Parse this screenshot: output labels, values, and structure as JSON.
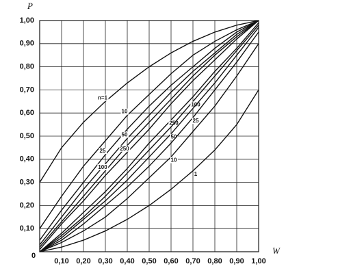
{
  "chart_data": {
    "type": "line",
    "y_label": "P",
    "x_label": "W",
    "origin_label": "0",
    "xlim": [
      0,
      1
    ],
    "ylim": [
      0,
      1
    ],
    "xticks": [
      {
        "value": 0.1,
        "label": "0,10"
      },
      {
        "value": 0.2,
        "label": "0,20"
      },
      {
        "value": 0.3,
        "label": "0,30"
      },
      {
        "value": 0.4,
        "label": "0,40"
      },
      {
        "value": 0.5,
        "label": "0,50"
      },
      {
        "value": 0.6,
        "label": "0,60"
      },
      {
        "value": 0.7,
        "label": "0,70"
      },
      {
        "value": 0.8,
        "label": "0,80"
      },
      {
        "value": 0.9,
        "label": "0,90"
      },
      {
        "value": 1,
        "label": "1,00"
      }
    ],
    "yticks": [
      {
        "value": 0.1,
        "label": "0,10"
      },
      {
        "value": 0.2,
        "label": "0,20"
      },
      {
        "value": 0.3,
        "label": "0,30"
      },
      {
        "value": 0.4,
        "label": "0,40"
      },
      {
        "value": 0.5,
        "label": "0,50"
      },
      {
        "value": 0.6,
        "label": "0,60"
      },
      {
        "value": 0.7,
        "label": "0,70"
      },
      {
        "value": 0.8,
        "label": "0,80"
      },
      {
        "value": 0.9,
        "label": "0,90"
      },
      {
        "value": 1,
        "label": "1,00"
      }
    ],
    "grid": true,
    "x": [
      0,
      0.1,
      0.2,
      0.3,
      0.4,
      0.5,
      0.6,
      0.7,
      0.8,
      0.9,
      1
    ],
    "series": [
      {
        "name": "n=1",
        "color": "#111",
        "values": [
          0.3,
          0.45,
          0.56,
          0.65,
          0.73,
          0.8,
          0.86,
          0.91,
          0.95,
          0.98,
          1
        ]
      },
      {
        "name": "10",
        "color": "#111",
        "values": [
          0.1,
          0.24,
          0.37,
          0.48,
          0.59,
          0.68,
          0.77,
          0.85,
          0.91,
          0.96,
          1
        ]
      },
      {
        "name": "25",
        "color": "#111",
        "values": [
          0.05,
          0.18,
          0.3,
          0.42,
          0.53,
          0.63,
          0.72,
          0.8,
          0.88,
          0.95,
          1
        ]
      },
      {
        "name": "50",
        "color": "#111",
        "values": [
          0.03,
          0.15,
          0.27,
          0.38,
          0.49,
          0.59,
          0.69,
          0.78,
          0.86,
          0.94,
          1
        ]
      },
      {
        "name": "100",
        "color": "#111",
        "values": [
          0.02,
          0.13,
          0.24,
          0.35,
          0.46,
          0.56,
          0.66,
          0.76,
          0.85,
          0.93,
          1
        ]
      },
      {
        "name": "250",
        "color": "#111",
        "values": [
          0.01,
          0.12,
          0.22,
          0.33,
          0.43,
          0.53,
          0.64,
          0.74,
          0.83,
          0.92,
          1
        ]
      },
      {
        "name": "250",
        "color": "#111",
        "values": [
          0,
          0.08,
          0.17,
          0.26,
          0.36,
          0.47,
          0.57,
          0.67,
          0.78,
          0.88,
          0.99
        ]
      },
      {
        "name": "100",
        "color": "#111",
        "values": [
          0,
          0.07,
          0.15,
          0.24,
          0.34,
          0.44,
          0.54,
          0.65,
          0.76,
          0.87,
          0.98
        ]
      },
      {
        "name": "50",
        "color": "#111",
        "values": [
          0,
          0.06,
          0.14,
          0.22,
          0.31,
          0.41,
          0.51,
          0.62,
          0.73,
          0.85,
          0.97
        ]
      },
      {
        "name": "25",
        "color": "#111",
        "values": [
          0,
          0.05,
          0.12,
          0.2,
          0.28,
          0.37,
          0.47,
          0.58,
          0.7,
          0.82,
          0.95
        ]
      },
      {
        "name": "10",
        "color": "#111",
        "values": [
          0,
          0.04,
          0.09,
          0.15,
          0.23,
          0.32,
          0.41,
          0.52,
          0.63,
          0.76,
          0.9
        ]
      },
      {
        "name": "1",
        "color": "#111",
        "values": [
          0,
          0.02,
          0.05,
          0.09,
          0.14,
          0.2,
          0.27,
          0.35,
          0.44,
          0.55,
          0.7
        ]
      }
    ]
  }
}
